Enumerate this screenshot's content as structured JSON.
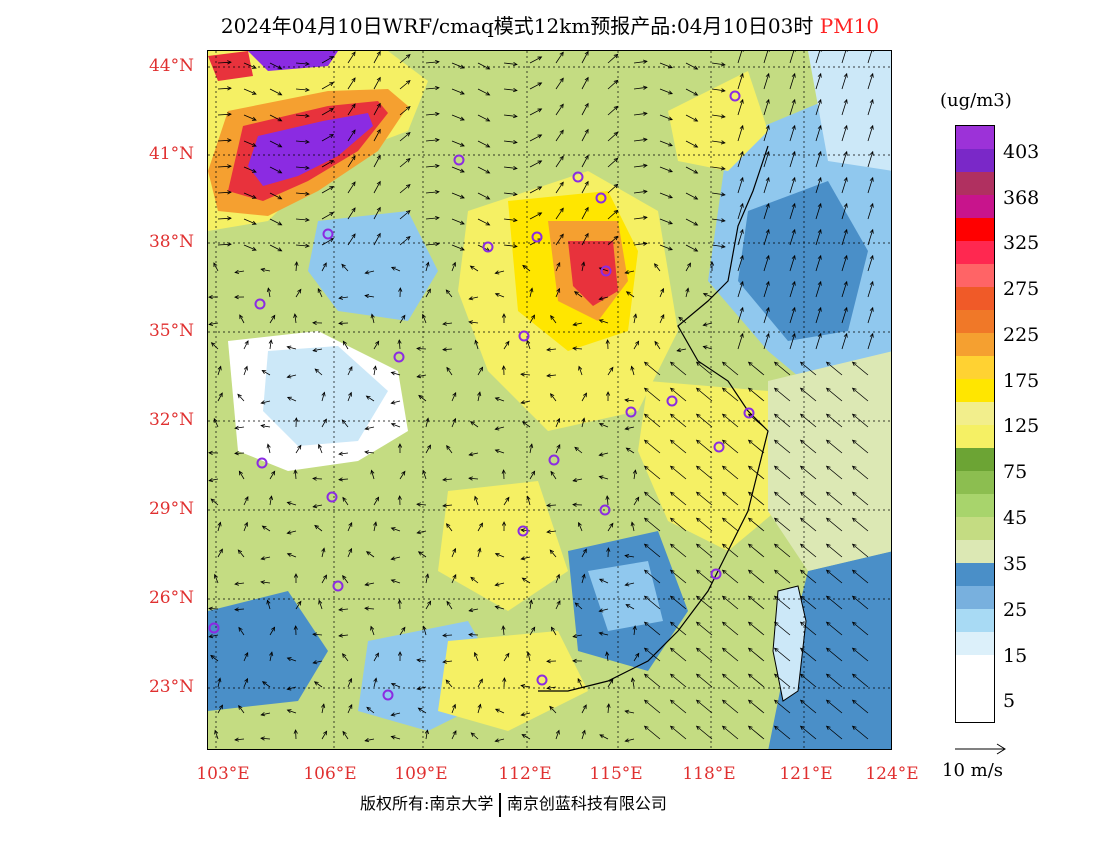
{
  "title": {
    "main": "2024年04月10日WRF/cmaq模式12km预报产品:04月10日03时",
    "pollutant": "PM10"
  },
  "map": {
    "lat_labels": [
      "44°N",
      "41°N",
      "38°N",
      "35°N",
      "32°N",
      "29°N",
      "26°N",
      "23°N"
    ],
    "lon_labels": [
      "103°E",
      "106°E",
      "109°E",
      "112°E",
      "115°E",
      "118°E",
      "121°E",
      "124°E"
    ],
    "colors": {
      "high_purple": "#8b2be2",
      "hot_red": "#e8323c",
      "orange": "#f5a030",
      "yellow": "#f5e646",
      "light_yellow": "#f2ee8c",
      "green": "#a4cc64",
      "light_green": "#c4dc82",
      "pale_green": "#dce8b4",
      "blue": "#4a8fc8",
      "light_blue": "#90c8ee",
      "pale_blue": "#cce8f8",
      "white": "#ffffff"
    }
  },
  "legend": {
    "unit": "(ug/m3)",
    "levels": [
      {
        "label": "403",
        "color": "#9c32d8"
      },
      {
        "label": "368",
        "color": "#b03060"
      },
      {
        "label": "325",
        "color": "#ff0000"
      },
      {
        "label": "275",
        "color": "#ff6466"
      },
      {
        "label": "225",
        "color": "#f05a28"
      },
      {
        "label": "175",
        "color": "#f5a030"
      },
      {
        "label": "125",
        "color": "#ffe600"
      },
      {
        "label": "75",
        "color": "#f5f064"
      },
      {
        "label": "45",
        "color": "#6ca434"
      },
      {
        "label": "35",
        "color": "#c4dc82"
      },
      {
        "label": "25",
        "color": "#4a8fc8"
      },
      {
        "label": "15",
        "color": "#a8daf4"
      },
      {
        "label": "5",
        "color": "#ffffff"
      }
    ],
    "extra_colors": [
      "#7a28c8",
      "#c8148c",
      "#ff2850",
      "#f07828",
      "#ffd232",
      "#f2ee8c",
      "#8cbe50",
      "#a8d46c",
      "#dce8b4",
      "#78b0de",
      "#dcf0fa"
    ]
  },
  "vector_ref": {
    "label": "10 m/s"
  },
  "copyright": {
    "part1": "版权所有:南京大学",
    "part2": "南京创蓝科技有限公司"
  }
}
